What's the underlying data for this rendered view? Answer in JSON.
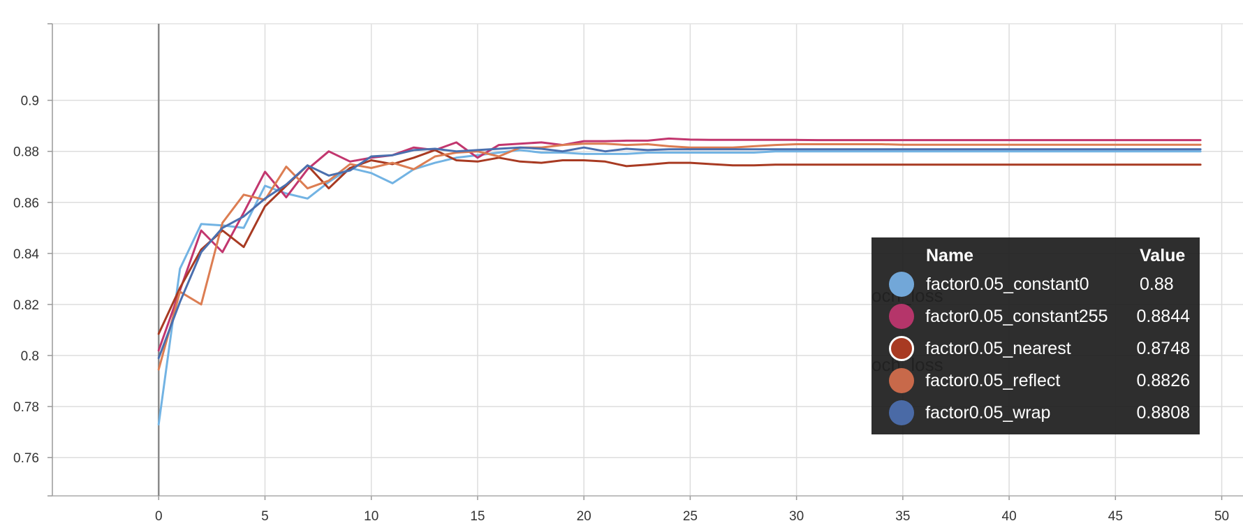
{
  "chart_data": {
    "type": "line",
    "title": "",
    "xlabel": "",
    "ylabel": "",
    "xlim": [
      -5,
      51
    ],
    "ylim": [
      0.745,
      0.93
    ],
    "xticks": [
      0,
      5,
      10,
      15,
      20,
      25,
      30,
      35,
      40,
      45,
      50
    ],
    "yticks": [
      0.76,
      0.78,
      0.8,
      0.82,
      0.84,
      0.86,
      0.88,
      0.9
    ],
    "grid": true,
    "legend": "tooltip-right",
    "background_text": [
      "och_loss",
      "och_loss"
    ],
    "series": [
      {
        "name": "factor0.05_constant0",
        "color": "#72b3e3",
        "values": [
          0.773,
          0.834,
          0.8515,
          0.851,
          0.85,
          0.8665,
          0.8635,
          0.8615,
          0.868,
          0.8735,
          0.8715,
          0.8675,
          0.873,
          0.8755,
          0.8775,
          0.8785,
          0.8795,
          0.8805,
          0.8795,
          0.8795,
          0.879,
          0.879,
          0.879,
          0.8795,
          0.8795,
          0.8795,
          0.8795,
          0.8795,
          0.8795,
          0.88,
          0.88,
          0.88,
          0.88,
          0.88,
          0.88,
          0.88,
          0.88,
          0.88,
          0.88,
          0.88,
          0.88,
          0.88,
          0.88,
          0.88,
          0.88,
          0.88,
          0.88,
          0.88,
          0.88,
          0.88
        ]
      },
      {
        "name": "factor0.05_constant255",
        "color": "#c2366e",
        "values": [
          0.802,
          0.8255,
          0.849,
          0.8405,
          0.856,
          0.872,
          0.862,
          0.873,
          0.88,
          0.876,
          0.8775,
          0.8785,
          0.8815,
          0.8805,
          0.8835,
          0.8775,
          0.8825,
          0.883,
          0.8835,
          0.8825,
          0.884,
          0.884,
          0.8842,
          0.8842,
          0.885,
          0.8846,
          0.8845,
          0.8845,
          0.8845,
          0.8845,
          0.8845,
          0.8844,
          0.8844,
          0.8844,
          0.8844,
          0.8844,
          0.8844,
          0.8844,
          0.8844,
          0.8844,
          0.8844,
          0.8844,
          0.8844,
          0.8844,
          0.8844,
          0.8844,
          0.8844,
          0.8844,
          0.8844,
          0.8844
        ]
      },
      {
        "name": "factor0.05_nearest",
        "color": "#a83a22",
        "values": [
          0.8085,
          0.8265,
          0.8415,
          0.849,
          0.8425,
          0.8585,
          0.8665,
          0.8745,
          0.8655,
          0.8735,
          0.8765,
          0.875,
          0.8775,
          0.8805,
          0.8765,
          0.876,
          0.8775,
          0.876,
          0.8755,
          0.8765,
          0.8765,
          0.876,
          0.8742,
          0.8748,
          0.8755,
          0.8755,
          0.875,
          0.8745,
          0.8745,
          0.8748,
          0.8748,
          0.8748,
          0.8748,
          0.8748,
          0.8748,
          0.8748,
          0.8748,
          0.8748,
          0.8748,
          0.8748,
          0.8748,
          0.8748,
          0.8748,
          0.8748,
          0.8748,
          0.8748,
          0.8748,
          0.8748,
          0.8748,
          0.8748
        ]
      },
      {
        "name": "factor0.05_reflect",
        "color": "#dc7d52",
        "values": [
          0.7945,
          0.825,
          0.82,
          0.852,
          0.863,
          0.861,
          0.874,
          0.8655,
          0.8685,
          0.875,
          0.8735,
          0.8755,
          0.873,
          0.878,
          0.8795,
          0.88,
          0.878,
          0.8815,
          0.8815,
          0.8825,
          0.883,
          0.883,
          0.8825,
          0.8828,
          0.882,
          0.8815,
          0.8815,
          0.8815,
          0.882,
          0.8825,
          0.8828,
          0.8828,
          0.8828,
          0.8828,
          0.8828,
          0.8826,
          0.8826,
          0.8826,
          0.8826,
          0.8826,
          0.8826,
          0.8826,
          0.8826,
          0.8826,
          0.8826,
          0.8826,
          0.8826,
          0.8826,
          0.8826,
          0.8826
        ]
      },
      {
        "name": "factor0.05_wrap",
        "color": "#4a6fae",
        "values": [
          0.799,
          0.821,
          0.8405,
          0.85,
          0.8545,
          0.8615,
          0.867,
          0.8745,
          0.8705,
          0.8725,
          0.878,
          0.8785,
          0.8805,
          0.881,
          0.88,
          0.8805,
          0.881,
          0.8815,
          0.881,
          0.88,
          0.8815,
          0.88,
          0.881,
          0.8805,
          0.8808,
          0.8808,
          0.8808,
          0.8808,
          0.8808,
          0.8808,
          0.8808,
          0.8808,
          0.8808,
          0.8808,
          0.8808,
          0.8808,
          0.8808,
          0.8808,
          0.8808,
          0.8808,
          0.8808,
          0.8808,
          0.8808,
          0.8808,
          0.8808,
          0.8808,
          0.8808,
          0.8808,
          0.8808,
          0.8808
        ]
      }
    ]
  },
  "tooltip": {
    "header_name": "Name",
    "header_value": "Value",
    "rows": [
      {
        "name": "factor0.05_constant0",
        "value": "0.88",
        "color": "#72a7d8"
      },
      {
        "name": "factor0.05_constant255",
        "value": "0.8844",
        "color": "#b5356a"
      },
      {
        "name": "factor0.05_nearest",
        "value": "0.8748",
        "color": "#a83a22",
        "outlined": true
      },
      {
        "name": "factor0.05_reflect",
        "value": "0.8826",
        "color": "#c8694a"
      },
      {
        "name": "factor0.05_wrap",
        "value": "0.8808",
        "color": "#4a6aa6"
      }
    ]
  }
}
